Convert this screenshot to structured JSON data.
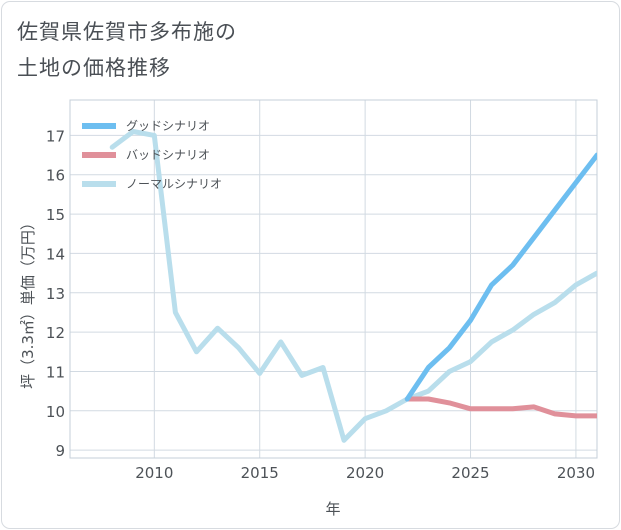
{
  "chart_data": {
    "type": "line",
    "title_lines": [
      "佐賀県佐賀市多布施の",
      "土地の価格推移"
    ],
    "xlabel": "年",
    "ylabel": "坪（3.3㎡）単価（万円）",
    "xlim": [
      2006,
      2031
    ],
    "ylim": [
      8.8,
      17.9
    ],
    "xticks": [
      2010,
      2015,
      2020,
      2025,
      2030
    ],
    "yticks": [
      9,
      10,
      11,
      12,
      13,
      14,
      15,
      16,
      17
    ],
    "legend_position": "top-left",
    "series": [
      {
        "name": "グッドシナリオ",
        "color": "#6dbef0",
        "x": [
          2022,
          2023,
          2024,
          2025,
          2026,
          2027,
          2028,
          2029,
          2030,
          2031
        ],
        "y": [
          10.3,
          11.1,
          11.6,
          12.3,
          13.2,
          13.7,
          14.4,
          15.1,
          15.8,
          16.5
        ]
      },
      {
        "name": "バッドシナリオ",
        "color": "#e0909a",
        "x": [
          2022,
          2023,
          2024,
          2025,
          2026,
          2027,
          2028,
          2029,
          2030,
          2031
        ],
        "y": [
          10.3,
          10.3,
          10.2,
          10.05,
          10.05,
          10.05,
          10.1,
          9.92,
          9.87,
          9.87
        ]
      },
      {
        "name": "ノーマルシナリオ",
        "color": "#b9deec",
        "x": [
          2008,
          2009,
          2010,
          2011,
          2012,
          2013,
          2014,
          2015,
          2016,
          2017,
          2018,
          2019,
          2020,
          2021,
          2022,
          2023,
          2024,
          2025,
          2026,
          2027,
          2028,
          2029,
          2030,
          2031
        ],
        "y": [
          16.7,
          17.1,
          17.0,
          12.5,
          11.5,
          12.1,
          11.6,
          10.95,
          11.75,
          10.9,
          11.1,
          9.25,
          9.8,
          10.0,
          10.3,
          10.5,
          11.0,
          11.25,
          11.75,
          12.05,
          12.45,
          12.75,
          13.2,
          13.5
        ]
      }
    ]
  }
}
